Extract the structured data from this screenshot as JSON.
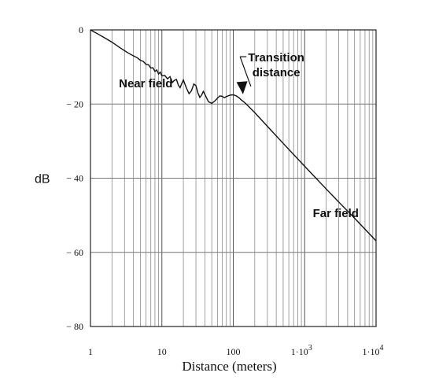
{
  "chart_data": {
    "type": "line",
    "title": "",
    "xlabel": "Distance (meters)",
    "ylabel": "dB",
    "x_scale": "log",
    "xlim": [
      1,
      10000
    ],
    "ylim": [
      -80,
      0
    ],
    "grid": true,
    "x_ticks": [
      1,
      10,
      100,
      1000,
      10000
    ],
    "x_tick_labels": [
      {
        "base": "1",
        "exp": ""
      },
      {
        "base": "10",
        "exp": ""
      },
      {
        "base": "100",
        "exp": ""
      },
      {
        "base": "1·10",
        "exp": "3"
      },
      {
        "base": "1·10",
        "exp": "4"
      }
    ],
    "y_ticks": [
      0,
      -20,
      -40,
      -60,
      -80
    ],
    "y_tick_labels": [
      "0",
      "− 20",
      "− 40",
      "− 60",
      "− 80"
    ],
    "series": [
      {
        "x": [
          1,
          1.3,
          1.6,
          2,
          2.5,
          3,
          3.5,
          4,
          4.5,
          5,
          5.5,
          6,
          6.5,
          7,
          7.5,
          8,
          8.5,
          9,
          9.5,
          10,
          11,
          12,
          13,
          14,
          15,
          16,
          17,
          18,
          19,
          20,
          22,
          24,
          26,
          28,
          30,
          32,
          34,
          36,
          38,
          40,
          45,
          50,
          55,
          60,
          65,
          70,
          75,
          80,
          90,
          100,
          110,
          120,
          130,
          140,
          150,
          200,
          300,
          500,
          1000,
          2000,
          3000,
          5000,
          10000
        ],
        "y": [
          0,
          -1.2,
          -2.2,
          -3.3,
          -4.6,
          -5.6,
          -6.4,
          -7.0,
          -7.5,
          -8.2,
          -8.5,
          -9.3,
          -9.4,
          -10.3,
          -10.2,
          -11.2,
          -10.8,
          -11.9,
          -11.4,
          -12.4,
          -12.3,
          -13.2,
          -12.6,
          -14.2,
          -13.6,
          -13.4,
          -14.9,
          -15.6,
          -14.5,
          -13.5,
          -15.6,
          -17.2,
          -16.4,
          -14.6,
          -15.0,
          -17.0,
          -18.2,
          -17.6,
          -16.6,
          -17.4,
          -19.4,
          -19.8,
          -19.2,
          -18.4,
          -17.8,
          -17.9,
          -18.3,
          -18.0,
          -17.6,
          -17.5,
          -17.8,
          -18.3,
          -18.9,
          -19.4,
          -19.9,
          -22.3,
          -26.0,
          -30.6,
          -36.8,
          -42.9,
          -46.4,
          -50.8,
          -56.9
        ]
      }
    ],
    "annotations": [
      {
        "text_lines": [
          "Near field"
        ],
        "x": 2.5,
        "y": -15.5
      },
      {
        "text_lines": [
          "Transition",
          "distance"
        ],
        "x": 400,
        "y": -8.5,
        "arrow_to": {
          "x": 130,
          "y": -18.2
        }
      },
      {
        "text_lines": [
          "Far field"
        ],
        "x": 1300,
        "y": -50.5
      }
    ]
  }
}
